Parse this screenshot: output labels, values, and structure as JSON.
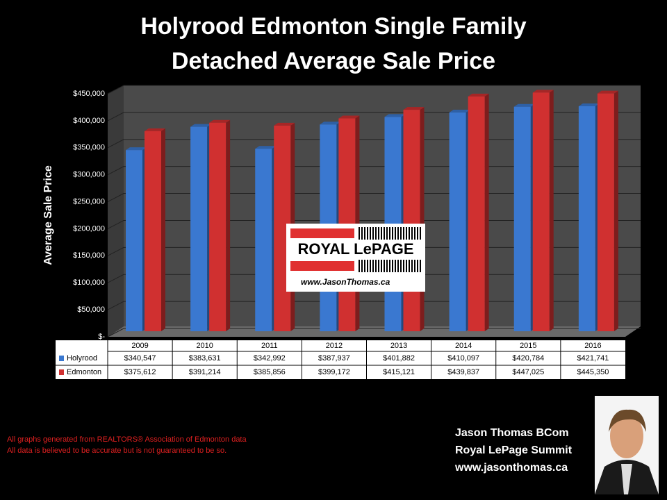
{
  "title": [
    "Holyrood Edmonton Single Family",
    "Detached Average Sale Price"
  ],
  "chart_data": {
    "type": "bar",
    "ylabel": "Average Sale Price",
    "categories": [
      "2009",
      "2010",
      "2011",
      "2012",
      "2013",
      "2014",
      "2015",
      "2016"
    ],
    "series": [
      {
        "name": "Holyrood",
        "color": "#3a78d0",
        "values": [
          340547,
          383631,
          342992,
          387937,
          401882,
          410097,
          420784,
          421741
        ],
        "value_labels": [
          "$340,547",
          "$383,631",
          "$342,992",
          "$387,937",
          "$401,882",
          "$410,097",
          "$420,784",
          "$421,741"
        ]
      },
      {
        "name": "Edmonton",
        "color": "#d03030",
        "values": [
          375612,
          391214,
          385856,
          399172,
          415121,
          439837,
          447025,
          445350
        ],
        "value_labels": [
          "$375,612",
          "$391,214",
          "$385,856",
          "$399,172",
          "$415,121",
          "$439,837",
          "$447,025",
          "$445,350"
        ]
      }
    ],
    "ylim": [
      0,
      450000
    ],
    "yticks": [
      {
        "value": 0,
        "label": "$-"
      },
      {
        "value": 50000,
        "label": "$50,000"
      },
      {
        "value": 100000,
        "label": "$100,000"
      },
      {
        "value": 150000,
        "label": "$150,000"
      },
      {
        "value": 200000,
        "label": "$200,000"
      },
      {
        "value": 250000,
        "label": "$250,000"
      },
      {
        "value": 300000,
        "label": "$300,000"
      },
      {
        "value": 350000,
        "label": "$350,000"
      },
      {
        "value": 400000,
        "label": "$400,000"
      },
      {
        "value": 450000,
        "label": "$450,000"
      }
    ],
    "grid": true
  },
  "logo": {
    "brand": "ROYAL LePAGE",
    "url": "www.JasonThomas.ca"
  },
  "footnotes": [
    "All graphs generated from REALTORS® Association of Edmonton data",
    "All data is believed to be accurate but is not guaranteed to be so."
  ],
  "signature": [
    "Jason Thomas BCom",
    "Royal LePage Summit",
    "www.jasonthomas.ca"
  ]
}
